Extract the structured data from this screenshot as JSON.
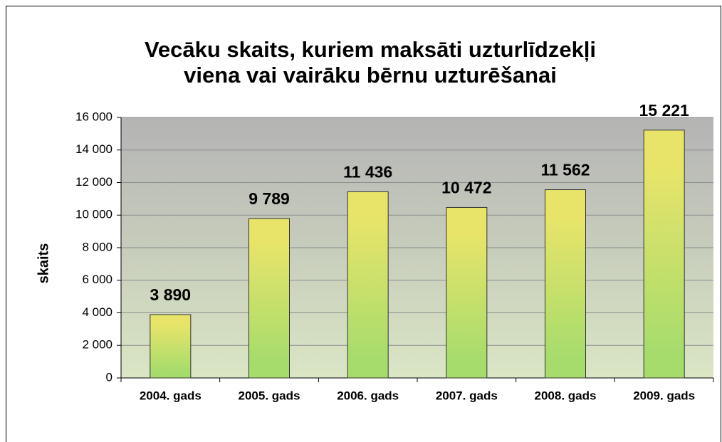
{
  "chart_data": {
    "type": "bar",
    "title": [
      "Vecāku skaits, kuriem maksāti uzturlīdzekļi",
      "viena vai vairāku bērnu uzturēšanai"
    ],
    "y_label": "skaits",
    "categories": [
      "2004. gads",
      "2005. gads",
      "2006. gads",
      "2007. gads",
      "2008. gads",
      "2009. gads"
    ],
    "values": [
      3890,
      9789,
      11436,
      10472,
      11562,
      15221
    ],
    "value_labels": [
      "3 890",
      "9 789",
      "11 436",
      "10 472",
      "11 562",
      "15 221"
    ],
    "color": [
      "#e8e46a",
      "#a6dc6c"
    ],
    "ylim": [
      0,
      16000
    ],
    "yticks": [
      0,
      {
        "value": 2000,
        "label": "2 000"
      },
      {
        "value": 4000,
        "label": "4 000"
      },
      {
        "value": 6000,
        "label": "6 000"
      },
      {
        "value": 8000,
        "label": "8 000"
      },
      {
        "value": 10000,
        "label": "10 000"
      },
      {
        "value": 12000,
        "label": "12 000"
      },
      {
        "value": 14000,
        "label": "14 000"
      },
      {
        "value": 16000,
        "label": "16 000"
      }
    ],
    "grid": true
  }
}
